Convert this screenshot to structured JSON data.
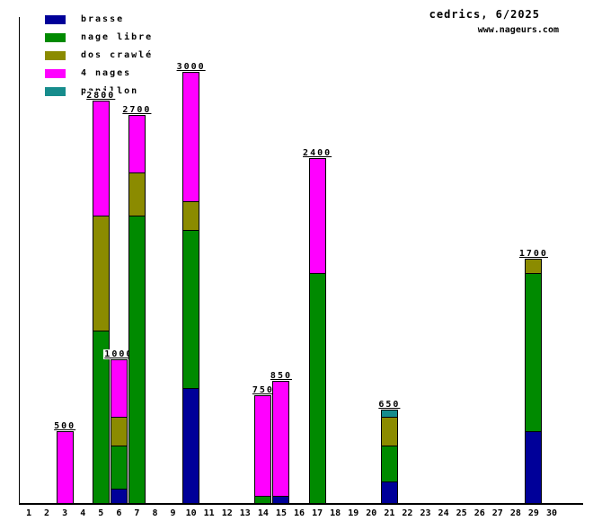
{
  "header": {
    "title": "cedrics, 6/2025",
    "site_url": "www.nageurs.com"
  },
  "legend": {
    "items": [
      {
        "label": "brasse",
        "color": "#000099"
      },
      {
        "label": "nage libre",
        "color": "#008A00"
      },
      {
        "label": "dos crawlé",
        "color": "#8B8B00"
      },
      {
        "label": "4 nages",
        "color": "#FF00FF"
      },
      {
        "label": "papillon",
        "color": "#168C8C"
      }
    ]
  },
  "chart_data": {
    "type": "bar",
    "stacked": true,
    "title": "cedrics, 6/2025",
    "grid": false,
    "legend_position": "top-left",
    "y_axis_tick_labels": "none",
    "categories": [
      "1",
      "2",
      "3",
      "4",
      "5",
      "6",
      "7",
      "8",
      "9",
      "10",
      "11",
      "12",
      "13",
      "14",
      "15",
      "16",
      "17",
      "18",
      "19",
      "20",
      "21",
      "22",
      "23",
      "24",
      "25",
      "26",
      "27",
      "28",
      "29",
      "30"
    ],
    "series_colors": {
      "brasse": "#000099",
      "nage libre": "#008A00",
      "dos crawlé": "#8B8B00",
      "4 nages": "#FF00FF",
      "papillon": "#168C8C"
    },
    "bars": [
      {
        "day": 3,
        "total": 500,
        "segments": [
          {
            "series": "4 nages",
            "value": 500
          }
        ]
      },
      {
        "day": 5,
        "total": 2800,
        "segments": [
          {
            "series": "nage libre",
            "value": 1200
          },
          {
            "series": "dos crawlé",
            "value": 800
          },
          {
            "series": "4 nages",
            "value": 800
          }
        ]
      },
      {
        "day": 6,
        "total": 1000,
        "segments": [
          {
            "series": "brasse",
            "value": 100
          },
          {
            "series": "nage libre",
            "value": 300
          },
          {
            "series": "dos crawlé",
            "value": 200
          },
          {
            "series": "4 nages",
            "value": 400
          }
        ]
      },
      {
        "day": 7,
        "total": 2700,
        "segments": [
          {
            "series": "nage libre",
            "value": 2000
          },
          {
            "series": "dos crawlé",
            "value": 300
          },
          {
            "series": "4 nages",
            "value": 400
          }
        ]
      },
      {
        "day": 10,
        "total": 3000,
        "segments": [
          {
            "series": "brasse",
            "value": 800
          },
          {
            "series": "nage libre",
            "value": 1100
          },
          {
            "series": "dos crawlé",
            "value": 200
          },
          {
            "series": "4 nages",
            "value": 900
          }
        ]
      },
      {
        "day": 14,
        "total": 750,
        "segments": [
          {
            "series": "nage libre",
            "value": 50
          },
          {
            "series": "4 nages",
            "value": 700
          }
        ]
      },
      {
        "day": 15,
        "total": 850,
        "segments": [
          {
            "series": "brasse",
            "value": 50
          },
          {
            "series": "4 nages",
            "value": 800
          }
        ]
      },
      {
        "day": 17,
        "total": 2400,
        "segments": [
          {
            "series": "nage libre",
            "value": 1600
          },
          {
            "series": "4 nages",
            "value": 800
          }
        ]
      },
      {
        "day": 21,
        "total": 650,
        "segments": [
          {
            "series": "brasse",
            "value": 150
          },
          {
            "series": "nage libre",
            "value": 250
          },
          {
            "series": "dos crawlé",
            "value": 200
          },
          {
            "series": "papillon",
            "value": 50
          }
        ]
      },
      {
        "day": 29,
        "total": 1700,
        "segments": [
          {
            "series": "brasse",
            "value": 500
          },
          {
            "series": "nage libre",
            "value": 1100
          },
          {
            "series": "dos crawlé",
            "value": 100
          }
        ]
      }
    ]
  }
}
